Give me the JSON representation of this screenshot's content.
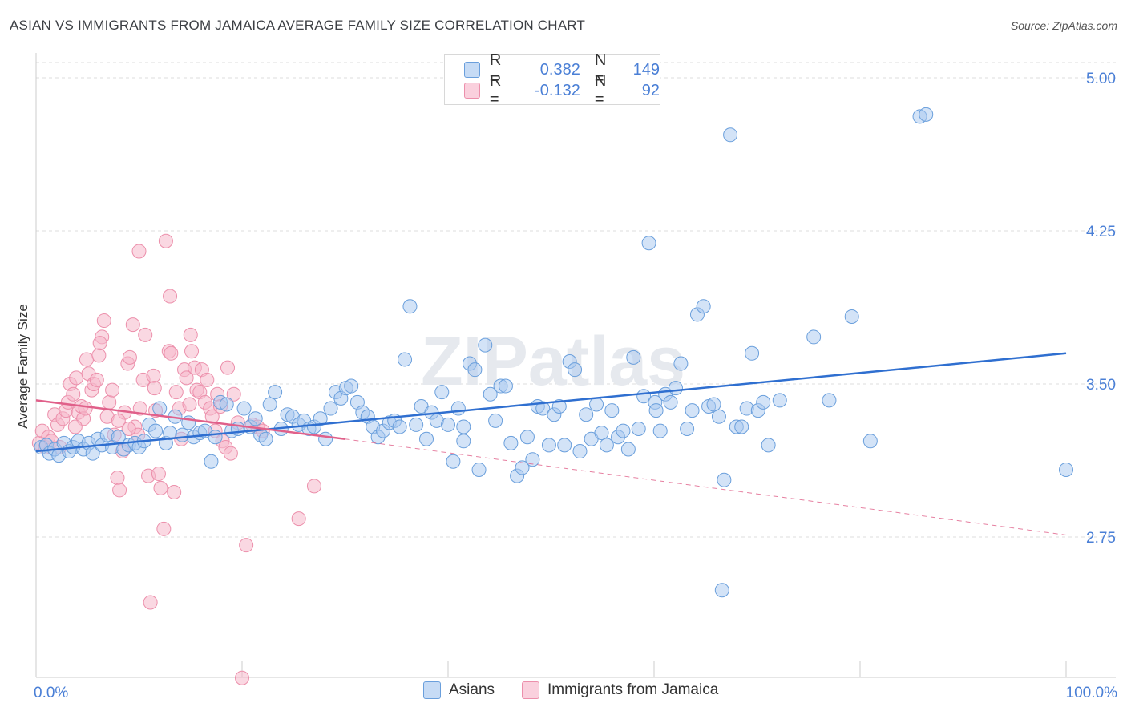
{
  "title": "ASIAN VS IMMIGRANTS FROM JAMAICA AVERAGE FAMILY SIZE CORRELATION CHART",
  "source": "Source: ZipAtlas.com",
  "watermark": "ZIPatlas",
  "legend_top": {
    "rows": [
      {
        "r_label": "R =",
        "r_value": "0.382",
        "n_label": "N =",
        "n_value": "149",
        "color": "#a8c8f0"
      },
      {
        "r_label": "R =",
        "r_value": "-0.132",
        "n_label": "N =",
        "n_value": "92",
        "color": "#f5b8cb"
      }
    ]
  },
  "colors": {
    "asians_fill": "#a8c8f0",
    "asians_stroke": "#6a9fdc",
    "asians_line": "#2f6fd0",
    "jamaica_fill": "#f5b8cb",
    "jamaica_stroke": "#ec8fab",
    "jamaica_line": "#e0608a",
    "tick_label": "#4a7fd6",
    "grid": "#dcdcdc"
  },
  "chart_data": {
    "type": "scatter",
    "title": "ASIAN VS IMMIGRANTS FROM JAMAICA AVERAGE FAMILY SIZE CORRELATION CHART",
    "xlabel": "",
    "ylabel": "Average Family Size",
    "xlim": [
      0,
      100
    ],
    "ylim": [
      2.0,
      5.1
    ],
    "x_tick_labels": [
      "0.0%",
      "100.0%"
    ],
    "y_ticks": [
      2.75,
      3.5,
      4.25,
      5.0
    ],
    "y_tick_labels": [
      "2.75",
      "3.50",
      "4.25",
      "5.00"
    ],
    "grid": true,
    "legend_position": "bottom",
    "series": [
      {
        "name": "Asians",
        "r": 0.382,
        "n": 149,
        "trend": {
          "x": [
            0,
            100
          ],
          "y": [
            3.17,
            3.65
          ]
        },
        "points": [
          [
            0.5,
            3.19
          ],
          [
            1.0,
            3.2
          ],
          [
            1.3,
            3.16
          ],
          [
            1.8,
            3.18
          ],
          [
            2.2,
            3.15
          ],
          [
            2.7,
            3.21
          ],
          [
            3.2,
            3.17
          ],
          [
            3.6,
            3.19
          ],
          [
            4.1,
            3.22
          ],
          [
            4.6,
            3.18
          ],
          [
            5.1,
            3.21
          ],
          [
            5.5,
            3.16
          ],
          [
            6.0,
            3.23
          ],
          [
            6.4,
            3.2
          ],
          [
            6.9,
            3.25
          ],
          [
            7.4,
            3.19
          ],
          [
            8.0,
            3.24
          ],
          [
            8.5,
            3.18
          ],
          [
            9.0,
            3.2
          ],
          [
            9.6,
            3.21
          ],
          [
            10.0,
            3.19
          ],
          [
            10.5,
            3.22
          ],
          [
            11.0,
            3.3
          ],
          [
            11.6,
            3.27
          ],
          [
            12.0,
            3.38
          ],
          [
            12.6,
            3.21
          ],
          [
            13.0,
            3.26
          ],
          [
            13.5,
            3.34
          ],
          [
            14.2,
            3.25
          ],
          [
            14.8,
            3.31
          ],
          [
            15.3,
            3.24
          ],
          [
            15.9,
            3.26
          ],
          [
            16.4,
            3.27
          ],
          [
            17.0,
            3.12
          ],
          [
            17.4,
            3.24
          ],
          [
            17.9,
            3.41
          ],
          [
            18.5,
            3.4
          ],
          [
            19.0,
            3.27
          ],
          [
            19.6,
            3.28
          ],
          [
            20.2,
            3.38
          ],
          [
            20.8,
            3.29
          ],
          [
            21.3,
            3.33
          ],
          [
            21.8,
            3.25
          ],
          [
            22.3,
            3.23
          ],
          [
            22.7,
            3.4
          ],
          [
            23.2,
            3.46
          ],
          [
            23.8,
            3.28
          ],
          [
            24.4,
            3.35
          ],
          [
            24.9,
            3.34
          ],
          [
            25.5,
            3.3
          ],
          [
            26.0,
            3.32
          ],
          [
            26.5,
            3.28
          ],
          [
            27.0,
            3.29
          ],
          [
            27.6,
            3.33
          ],
          [
            28.1,
            3.23
          ],
          [
            28.6,
            3.38
          ],
          [
            29.1,
            3.46
          ],
          [
            29.6,
            3.43
          ],
          [
            30.1,
            3.48
          ],
          [
            30.6,
            3.49
          ],
          [
            31.2,
            3.41
          ],
          [
            31.7,
            3.36
          ],
          [
            32.2,
            3.34
          ],
          [
            32.7,
            3.29
          ],
          [
            33.2,
            3.24
          ],
          [
            33.7,
            3.27
          ],
          [
            34.3,
            3.31
          ],
          [
            34.8,
            3.32
          ],
          [
            35.3,
            3.29
          ],
          [
            35.8,
            3.62
          ],
          [
            36.3,
            3.88
          ],
          [
            36.9,
            3.3
          ],
          [
            37.4,
            3.39
          ],
          [
            37.9,
            3.23
          ],
          [
            38.4,
            3.36
          ],
          [
            38.9,
            3.32
          ],
          [
            39.4,
            3.46
          ],
          [
            40.0,
            3.3
          ],
          [
            40.5,
            3.12
          ],
          [
            41.0,
            3.38
          ],
          [
            41.5,
            3.29
          ],
          [
            42.1,
            3.6
          ],
          [
            42.6,
            3.57
          ],
          [
            43.0,
            3.08
          ],
          [
            43.6,
            3.69
          ],
          [
            44.1,
            3.45
          ],
          [
            44.6,
            3.32
          ],
          [
            45.1,
            3.49
          ],
          [
            45.6,
            3.49
          ],
          [
            46.1,
            3.21
          ],
          [
            46.7,
            3.05
          ],
          [
            47.2,
            3.09
          ],
          [
            47.7,
            3.24
          ],
          [
            48.2,
            3.13
          ],
          [
            48.7,
            3.39
          ],
          [
            49.2,
            3.38
          ],
          [
            49.8,
            3.2
          ],
          [
            50.3,
            3.35
          ],
          [
            50.8,
            3.39
          ],
          [
            51.3,
            3.2
          ],
          [
            51.8,
            3.61
          ],
          [
            52.3,
            3.57
          ],
          [
            52.8,
            3.17
          ],
          [
            53.4,
            3.35
          ],
          [
            53.9,
            3.23
          ],
          [
            54.4,
            3.4
          ],
          [
            54.9,
            3.26
          ],
          [
            55.4,
            3.2
          ],
          [
            55.9,
            3.37
          ],
          [
            56.5,
            3.24
          ],
          [
            57.0,
            3.27
          ],
          [
            57.5,
            3.18
          ],
          [
            58.0,
            3.63
          ],
          [
            58.5,
            3.28
          ],
          [
            59.0,
            3.44
          ],
          [
            59.5,
            4.19
          ],
          [
            60.1,
            3.41
          ],
          [
            60.6,
            3.27
          ],
          [
            61.1,
            3.45
          ],
          [
            61.6,
            3.41
          ],
          [
            62.1,
            3.48
          ],
          [
            62.6,
            3.6
          ],
          [
            63.2,
            3.28
          ],
          [
            63.7,
            3.37
          ],
          [
            64.2,
            3.84
          ],
          [
            64.8,
            3.88
          ],
          [
            65.3,
            3.39
          ],
          [
            65.8,
            3.4
          ],
          [
            66.3,
            3.34
          ],
          [
            66.6,
            2.49
          ],
          [
            66.8,
            3.03
          ],
          [
            67.4,
            4.72
          ],
          [
            68.0,
            3.29
          ],
          [
            68.5,
            3.29
          ],
          [
            69.0,
            3.38
          ],
          [
            69.5,
            3.65
          ],
          [
            70.1,
            3.37
          ],
          [
            70.6,
            3.41
          ],
          [
            71.1,
            3.2
          ],
          [
            72.2,
            3.42
          ],
          [
            75.5,
            3.73
          ],
          [
            77.0,
            3.42
          ],
          [
            79.2,
            3.83
          ],
          [
            81.0,
            3.22
          ],
          [
            85.8,
            4.81
          ],
          [
            86.4,
            4.82
          ],
          [
            100.0,
            3.08
          ],
          [
            41.5,
            3.22
          ],
          [
            60.2,
            3.37
          ]
        ]
      },
      {
        "name": "Immigrants from Jamaica",
        "r": -0.132,
        "n": 92,
        "trend": {
          "x": [
            0,
            30
          ],
          "y": [
            3.42,
            3.23
          ]
        },
        "trend_extended": {
          "x": [
            30,
            100
          ],
          "y": [
            3.23,
            2.76
          ]
        },
        "points": [
          [
            0.3,
            3.21
          ],
          [
            0.6,
            3.27
          ],
          [
            0.9,
            3.19
          ],
          [
            1.2,
            3.24
          ],
          [
            1.5,
            3.22
          ],
          [
            1.8,
            3.35
          ],
          [
            2.1,
            3.3
          ],
          [
            2.3,
            3.19
          ],
          [
            2.6,
            3.33
          ],
          [
            2.9,
            3.37
          ],
          [
            3.1,
            3.41
          ],
          [
            3.3,
            3.5
          ],
          [
            3.6,
            3.45
          ],
          [
            3.9,
            3.53
          ],
          [
            4.1,
            3.36
          ],
          [
            4.4,
            3.39
          ],
          [
            4.6,
            3.33
          ],
          [
            4.9,
            3.62
          ],
          [
            5.1,
            3.55
          ],
          [
            5.4,
            3.47
          ],
          [
            5.6,
            3.5
          ],
          [
            5.9,
            3.52
          ],
          [
            6.1,
            3.64
          ],
          [
            6.4,
            3.73
          ],
          [
            6.6,
            3.81
          ],
          [
            6.9,
            3.34
          ],
          [
            7.1,
            3.41
          ],
          [
            7.4,
            3.47
          ],
          [
            7.6,
            3.25
          ],
          [
            7.9,
            3.04
          ],
          [
            8.1,
            2.98
          ],
          [
            8.4,
            3.17
          ],
          [
            8.6,
            3.36
          ],
          [
            8.9,
            3.6
          ],
          [
            9.1,
            3.63
          ],
          [
            9.4,
            3.79
          ],
          [
            9.6,
            3.29
          ],
          [
            9.9,
            3.25
          ],
          [
            10.1,
            3.38
          ],
          [
            10.4,
            3.52
          ],
          [
            10.6,
            3.74
          ],
          [
            10.9,
            3.05
          ],
          [
            11.1,
            2.43
          ],
          [
            11.4,
            3.54
          ],
          [
            11.6,
            3.37
          ],
          [
            11.9,
            3.06
          ],
          [
            12.1,
            2.99
          ],
          [
            12.4,
            2.79
          ],
          [
            12.6,
            4.2
          ],
          [
            12.9,
            3.66
          ],
          [
            13.1,
            3.65
          ],
          [
            13.4,
            2.97
          ],
          [
            13.6,
            3.46
          ],
          [
            13.9,
            3.38
          ],
          [
            14.1,
            3.23
          ],
          [
            14.4,
            3.57
          ],
          [
            14.6,
            3.53
          ],
          [
            14.9,
            3.4
          ],
          [
            15.1,
            3.66
          ],
          [
            15.4,
            3.58
          ],
          [
            15.6,
            3.47
          ],
          [
            15.9,
            3.46
          ],
          [
            16.1,
            3.57
          ],
          [
            16.4,
            3.41
          ],
          [
            16.6,
            3.52
          ],
          [
            16.9,
            3.38
          ],
          [
            17.1,
            3.34
          ],
          [
            17.4,
            3.27
          ],
          [
            17.6,
            3.45
          ],
          [
            17.9,
            3.39
          ],
          [
            18.1,
            3.22
          ],
          [
            18.4,
            3.19
          ],
          [
            18.6,
            3.58
          ],
          [
            18.9,
            3.16
          ],
          [
            19.2,
            3.45
          ],
          [
            19.6,
            3.31
          ],
          [
            20.0,
            2.06
          ],
          [
            20.4,
            2.71
          ],
          [
            21.0,
            3.3
          ],
          [
            21.5,
            3.29
          ],
          [
            22.0,
            3.27
          ],
          [
            3.8,
            3.29
          ],
          [
            4.8,
            3.38
          ],
          [
            6.2,
            3.7
          ],
          [
            8.0,
            3.32
          ],
          [
            9.0,
            3.28
          ],
          [
            10.0,
            4.15
          ],
          [
            11.5,
            3.48
          ],
          [
            13.0,
            3.93
          ],
          [
            15.0,
            3.74
          ],
          [
            27.0,
            3.0
          ],
          [
            25.5,
            2.84
          ]
        ]
      }
    ]
  },
  "bottom_legend": {
    "items": [
      {
        "label": "Asians",
        "color": "#a8c8f0"
      },
      {
        "label": "Immigrants from Jamaica",
        "color": "#f5b8cb"
      }
    ]
  }
}
